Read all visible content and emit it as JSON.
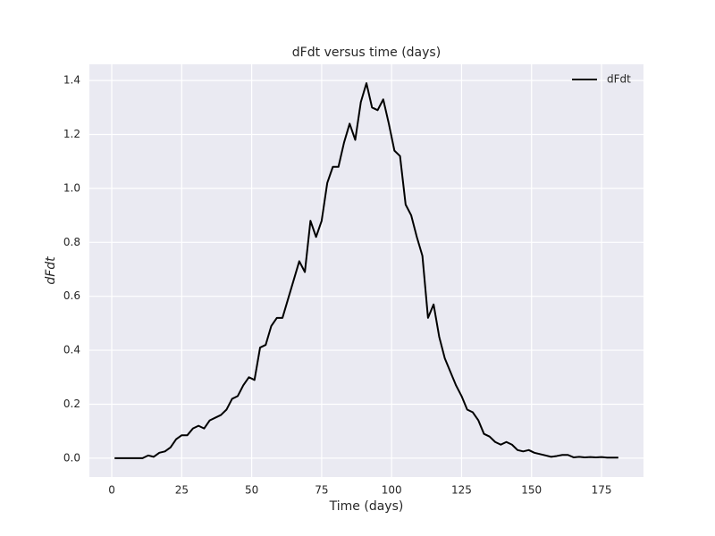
{
  "chart_data": {
    "type": "line",
    "title": "dFdt versus time (days)",
    "x_label": "Time (days)",
    "y_label": "dFdt",
    "x": [
      1,
      3,
      5,
      7,
      9,
      11,
      13,
      15,
      17,
      19,
      21,
      23,
      25,
      27,
      29,
      31,
      33,
      35,
      37,
      39,
      41,
      43,
      45,
      47,
      49,
      51,
      53,
      55,
      57,
      59,
      61,
      63,
      65,
      67,
      69,
      71,
      73,
      75,
      77,
      79,
      81,
      83,
      85,
      87,
      89,
      91,
      93,
      95,
      97,
      99,
      101,
      103,
      105,
      107,
      109,
      111,
      113,
      115,
      117,
      119,
      121,
      123,
      125,
      127,
      129,
      131,
      133,
      135,
      137,
      139,
      141,
      143,
      145,
      147,
      149,
      151,
      153,
      155,
      157,
      159,
      161,
      163,
      165,
      167,
      169,
      171,
      173,
      175,
      177,
      179,
      181
    ],
    "series": [
      {
        "name": "dFdt",
        "color": "#000000",
        "values": [
          0,
          0,
          0,
          0,
          0,
          0,
          0.01,
          0.005,
          0.02,
          0.025,
          0.04,
          0.07,
          0.085,
          0.085,
          0.11,
          0.12,
          0.11,
          0.14,
          0.15,
          0.16,
          0.18,
          0.22,
          0.23,
          0.27,
          0.3,
          0.29,
          0.41,
          0.42,
          0.49,
          0.52,
          0.52,
          0.59,
          0.66,
          0.73,
          0.69,
          0.88,
          0.82,
          0.88,
          1.02,
          1.08,
          1.08,
          1.17,
          1.24,
          1.18,
          1.32,
          1.39,
          1.3,
          1.29,
          1.33,
          1.24,
          1.14,
          1.12,
          0.94,
          0.9,
          0.82,
          0.75,
          0.52,
          0.57,
          0.45,
          0.37,
          0.32,
          0.27,
          0.23,
          0.18,
          0.17,
          0.14,
          0.09,
          0.08,
          0.06,
          0.05,
          0.06,
          0.05,
          0.03,
          0.025,
          0.03,
          0.02,
          0.015,
          0.01,
          0.005,
          0.008,
          0.012,
          0.012,
          0.003,
          0.005,
          0.003,
          0.004,
          0.003,
          0.004,
          0.002,
          0.002,
          0.002
        ]
      }
    ],
    "xlim": [
      -8,
      190
    ],
    "ylim": [
      -0.07,
      1.46
    ],
    "xticks": [
      0,
      25,
      50,
      75,
      100,
      125,
      150,
      175
    ],
    "yticks": [
      {
        "value": 0,
        "label": "0.0"
      },
      {
        "value": 0.2,
        "label": "0.2"
      },
      {
        "value": 0.4,
        "label": "0.4"
      },
      {
        "value": 0.6,
        "label": "0.6"
      },
      {
        "value": 0.8,
        "label": "0.8"
      },
      {
        "value": 1.0,
        "label": "1.0"
      },
      {
        "value": 1.2,
        "label": "1.2"
      },
      {
        "value": 1.4,
        "label": "1.4"
      }
    ],
    "grid": true,
    "legend": "upper right"
  }
}
